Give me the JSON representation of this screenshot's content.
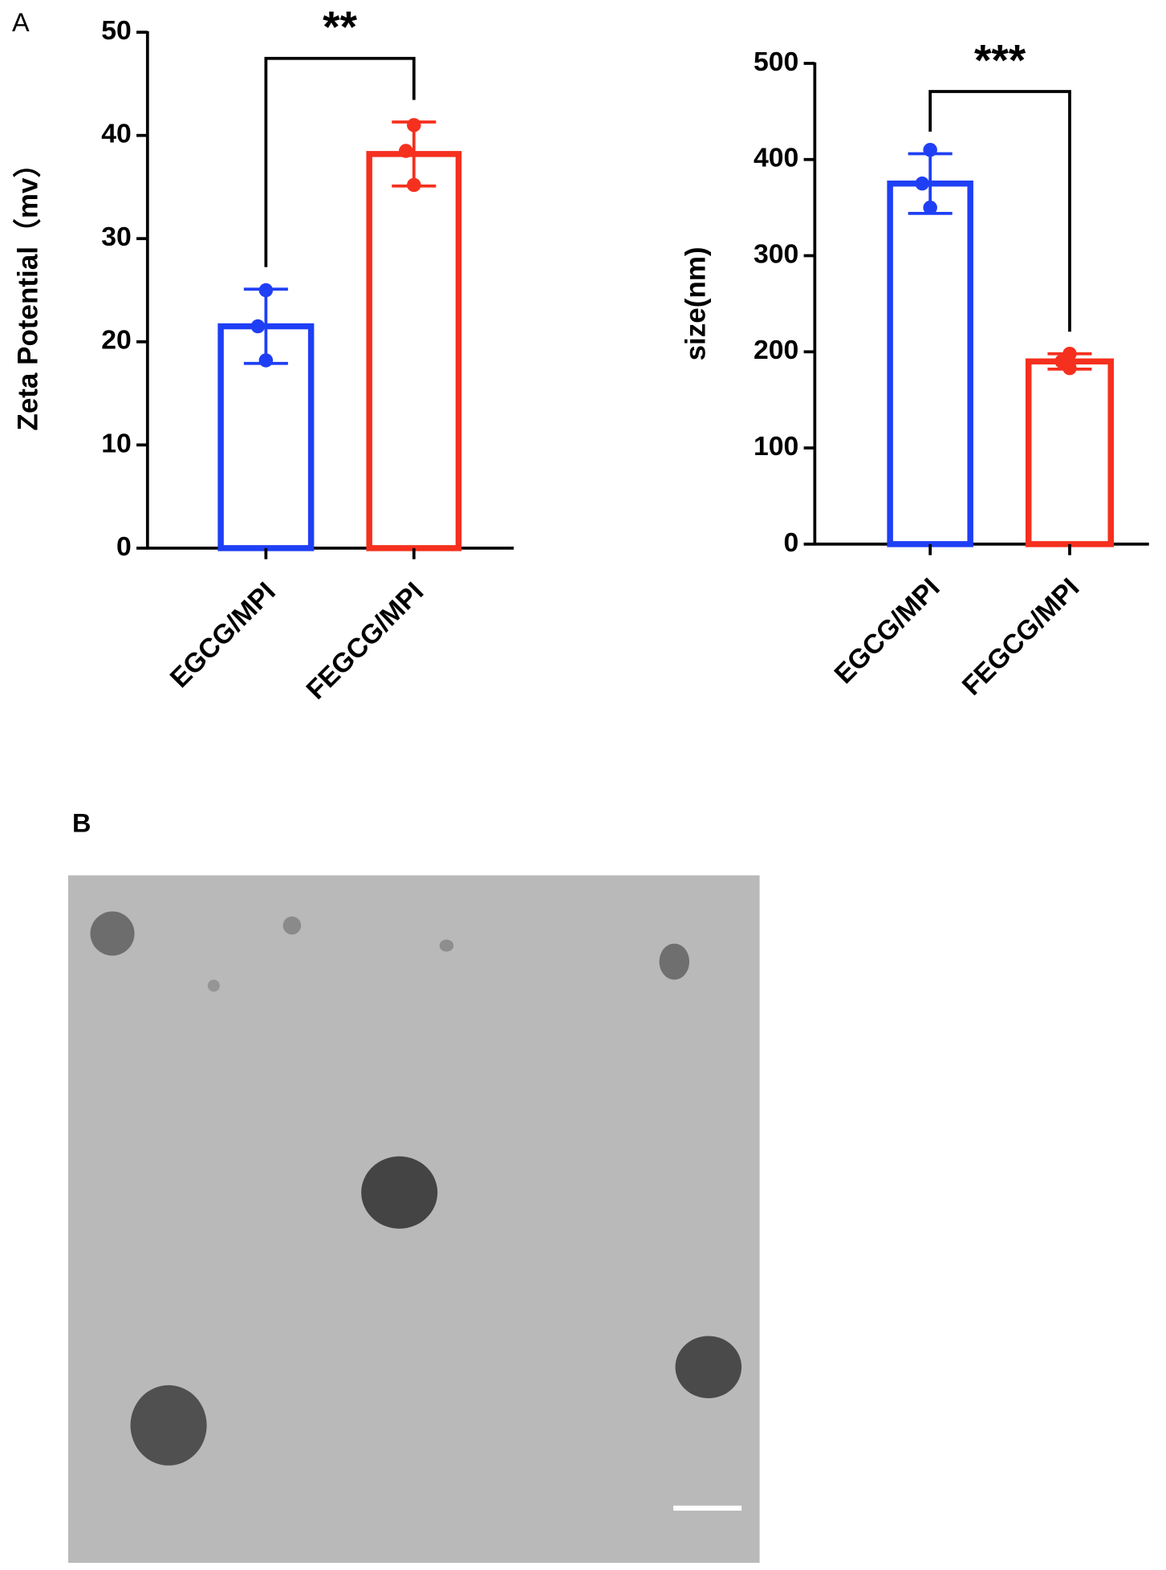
{
  "panels": {
    "a": "A",
    "b": "B"
  },
  "chart_data": [
    {
      "type": "bar",
      "ylabel": "Zeta Potential（mv）",
      "categories": [
        "EGCG/MPI",
        "FEGCG/MPI"
      ],
      "values": [
        21.5,
        38.2
      ],
      "errors": [
        3.6,
        3.1
      ],
      "points": [
        [
          25,
          21.5,
          18.2
        ],
        [
          41,
          38.5,
          35.2
        ]
      ],
      "colors": [
        "#1f3ff5",
        "#f5301e"
      ],
      "significance": "**",
      "ylim": [
        0,
        50
      ],
      "yticks": [
        0,
        10,
        20,
        30,
        40,
        50
      ]
    },
    {
      "type": "bar",
      "ylabel": "size(nm)",
      "categories": [
        "EGCG/MPI",
        "FEGCG/MPI"
      ],
      "values": [
        375,
        190
      ],
      "errors": [
        31,
        8
      ],
      "points": [
        [
          410,
          375,
          350
        ],
        [
          198,
          190,
          183
        ]
      ],
      "colors": [
        "#1f3ff5",
        "#f5301e"
      ],
      "significance": "***",
      "ylim": [
        0,
        500
      ],
      "yticks": [
        0,
        100,
        200,
        300,
        400,
        500
      ]
    }
  ]
}
